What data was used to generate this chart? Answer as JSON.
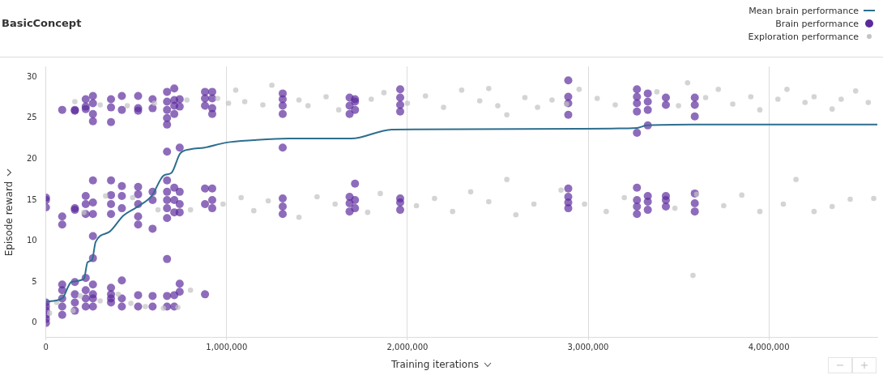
{
  "chart_data": {
    "type": "scatter",
    "title": "BasicConcept",
    "xlabel": "Training iterations",
    "ylabel": "Episode reward",
    "xlim": [
      0,
      4600000
    ],
    "xticks": [
      {
        "value": 0,
        "label": "0"
      },
      {
        "value": 1000000,
        "label": "1,000,000"
      },
      {
        "value": 2000000,
        "label": "2,000,000"
      },
      {
        "value": 3000000,
        "label": "3,000,000"
      },
      {
        "value": 4000000,
        "label": "4,000,000"
      }
    ],
    "ylim": [
      -1.7,
      31.3
    ],
    "yticks": [
      0,
      5,
      10,
      15,
      20,
      25,
      30
    ],
    "grid": "x",
    "legend": "top right",
    "series": [
      {
        "name": "Mean brain performance",
        "type": "line",
        "marker": "none",
        "color": "#2d6e8e",
        "line_style": "solid",
        "x": [
          0,
          90000,
          140000,
          210000,
          230000,
          255000,
          275000,
          350000,
          428000,
          500000,
          585000,
          652000,
          694000,
          743000,
          800000,
          878000,
          995000,
          1150000,
          1342000,
          1689000,
          1914000,
          2964000,
          3270000,
          3324000,
          3581000,
          4600000
        ],
        "values": [
          2.6,
          3.0,
          5.0,
          5.4,
          7.4,
          7.7,
          9.9,
          11.1,
          13.1,
          14.1,
          15.5,
          18.0,
          18.3,
          20.7,
          21.2,
          21.4,
          22.0,
          22.3,
          22.5,
          22.5,
          23.6,
          23.7,
          23.8,
          24.1,
          24.2,
          24.2
        ]
      },
      {
        "name": "Brain performance",
        "marker": "circle",
        "color": "#5b2a9c",
        "x": [
          0,
          0,
          0,
          0,
          0,
          0,
          0,
          0,
          0,
          90000,
          90000,
          90000,
          90000,
          90000,
          90000,
          90000,
          90000,
          160000,
          160000,
          160000,
          160000,
          160000,
          160000,
          160000,
          160000,
          220000,
          220000,
          220000,
          220000,
          220000,
          220000,
          220000,
          220000,
          220000,
          220000,
          260000,
          260000,
          260000,
          260000,
          260000,
          260000,
          260000,
          260000,
          260000,
          260000,
          260000,
          260000,
          260000,
          360000,
          360000,
          360000,
          360000,
          360000,
          360000,
          360000,
          360000,
          360000,
          360000,
          360000,
          420000,
          420000,
          420000,
          420000,
          420000,
          420000,
          420000,
          420000,
          510000,
          510000,
          510000,
          510000,
          510000,
          510000,
          510000,
          510000,
          510000,
          510000,
          590000,
          590000,
          590000,
          590000,
          590000,
          590000,
          590000,
          670000,
          670000,
          670000,
          670000,
          670000,
          670000,
          670000,
          670000,
          670000,
          670000,
          670000,
          670000,
          670000,
          670000,
          710000,
          710000,
          710000,
          710000,
          710000,
          710000,
          710000,
          710000,
          710000,
          740000,
          740000,
          740000,
          740000,
          740000,
          740000,
          740000,
          740000,
          880000,
          880000,
          880000,
          880000,
          880000,
          880000,
          920000,
          920000,
          920000,
          920000,
          920000,
          920000,
          920000,
          1310000,
          1310000,
          1310000,
          1310000,
          1310000,
          1310000,
          1310000,
          1310000,
          1680000,
          1680000,
          1680000,
          1680000,
          1680000,
          1680000,
          1710000,
          1710000,
          1710000,
          1710000,
          1710000,
          1710000,
          1960000,
          1960000,
          1960000,
          1960000,
          1960000,
          1960000,
          1960000,
          2890000,
          2890000,
          2890000,
          2890000,
          2890000,
          2890000,
          2890000,
          2890000,
          3270000,
          3270000,
          3270000,
          3270000,
          3270000,
          3270000,
          3270000,
          3270000,
          3270000,
          3330000,
          3330000,
          3330000,
          3330000,
          3330000,
          3330000,
          3330000,
          3430000,
          3430000,
          3430000,
          3430000,
          3430000,
          3590000,
          3590000,
          3590000,
          3590000,
          3590000,
          3590000
        ],
        "values": [
          0,
          0.5,
          1,
          1.5,
          2,
          2.5,
          14.1,
          15,
          15.3,
          1,
          2,
          3,
          4,
          4.7,
          13,
          12,
          26,
          1.5,
          2.5,
          3.5,
          5,
          13.8,
          14,
          26,
          25.9,
          2,
          3,
          4,
          5.5,
          13.3,
          14.5,
          15.5,
          26.4,
          26.1,
          27.3,
          2,
          3,
          3.5,
          4.7,
          13.3,
          14.7,
          17.4,
          10.6,
          7.9,
          24.6,
          25.5,
          26.8,
          27.7,
          2.5,
          3,
          3.5,
          4.3,
          13.3,
          14.5,
          15.6,
          17.4,
          26.3,
          27.3,
          24.5,
          2,
          3,
          5.2,
          14,
          15.5,
          16.7,
          26,
          27.7,
          2,
          3.4,
          13,
          14.5,
          15.7,
          16.6,
          12,
          27.7,
          26.2,
          25.9,
          2,
          3.3,
          11.5,
          15,
          16,
          26.2,
          27.3,
          2,
          3.3,
          12.8,
          14,
          15,
          16,
          17.4,
          24.2,
          25,
          26,
          27,
          28.2,
          20.9,
          7.8,
          2,
          3.4,
          13.5,
          15,
          16.5,
          25.5,
          26.5,
          27.2,
          28.6,
          3.8,
          4.8,
          13.5,
          14.5,
          16,
          21.4,
          26.4,
          27.3,
          3.5,
          14.5,
          16.4,
          26.5,
          27.4,
          28.2,
          14,
          15,
          16.4,
          25.5,
          26.2,
          27.4,
          28.2,
          13.3,
          14.2,
          15.2,
          21.4,
          25.5,
          26.5,
          27.3,
          28,
          13.6,
          14.6,
          15.4,
          25.5,
          26.5,
          27.5,
          14,
          15,
          17,
          26,
          27,
          27.3,
          13.8,
          14.7,
          15.2,
          25.8,
          26.6,
          27.5,
          28.5,
          14,
          14.7,
          15.4,
          16.4,
          25.4,
          26.8,
          27.6,
          29.6,
          13.3,
          14.2,
          15,
          16.5,
          25.8,
          26.8,
          27.6,
          28.5,
          23.2,
          13.8,
          14.8,
          15.5,
          26,
          27,
          28,
          24.1,
          14.2,
          15,
          15.5,
          26.6,
          27.5,
          13.6,
          14.6,
          15.8,
          25.2,
          26.6,
          27.5
        ]
      },
      {
        "name": "Exploration performance",
        "marker": "circle",
        "color": "#c4c4c4",
        "x": [
          160000,
          300000,
          450000,
          600000,
          780000,
          950000,
          1010000,
          1050000,
          1100000,
          1200000,
          1250000,
          1400000,
          1450000,
          1550000,
          1620000,
          1800000,
          1870000,
          2000000,
          2100000,
          2200000,
          2300000,
          2400000,
          2450000,
          2500000,
          2550000,
          2650000,
          2720000,
          2800000,
          2880000,
          2950000,
          3050000,
          3150000,
          3380000,
          3500000,
          3550000,
          3650000,
          3720000,
          3800000,
          3900000,
          3950000,
          4050000,
          4100000,
          4200000,
          4250000,
          4350000,
          4400000,
          4480000,
          4550000,
          210000,
          330000,
          480000,
          620000,
          800000,
          980000,
          1080000,
          1150000,
          1230000,
          1400000,
          1500000,
          1600000,
          1780000,
          1850000,
          2050000,
          2150000,
          2250000,
          2350000,
          2450000,
          2550000,
          2600000,
          2700000,
          2850000,
          2980000,
          3100000,
          3200000,
          3480000,
          3600000,
          3750000,
          3850000,
          3950000,
          4080000,
          4150000,
          4250000,
          4350000,
          4450000,
          4580000,
          20000,
          60000,
          150000,
          190000,
          300000,
          400000,
          470000,
          550000,
          650000,
          730000,
          800000,
          3580000
        ],
        "values": [
          27,
          26.6,
          26.5,
          26.8,
          27.2,
          27.4,
          26.8,
          28.4,
          27,
          26.6,
          29,
          27.2,
          26.5,
          27.6,
          26,
          27.3,
          28.1,
          26.8,
          27.7,
          26.3,
          28.4,
          27.1,
          28.6,
          26.5,
          25.4,
          27.5,
          26.3,
          27.2,
          26.7,
          28.5,
          27.4,
          26.6,
          28.2,
          26.5,
          29.3,
          27.5,
          28.5,
          26.7,
          27.6,
          26,
          27.3,
          28.5,
          26.9,
          27.6,
          26.1,
          27.3,
          28.3,
          26.9,
          13.5,
          15.5,
          15.3,
          13.8,
          13.8,
          14.5,
          15.3,
          13.7,
          14.9,
          12.9,
          15.4,
          14.5,
          13.5,
          15.8,
          14.3,
          15.2,
          13.6,
          16,
          14.8,
          17.5,
          13.2,
          14.5,
          16.2,
          14.5,
          13.6,
          15.3,
          14,
          15.7,
          14.3,
          15.6,
          13.6,
          14.5,
          17.5,
          13.6,
          14.2,
          15.1,
          15.2,
          1.2,
          2.5,
          1.5,
          3.3,
          2.7,
          3.5,
          2.4,
          2,
          1.8,
          1.9,
          4,
          5.8
        ]
      }
    ]
  }
}
